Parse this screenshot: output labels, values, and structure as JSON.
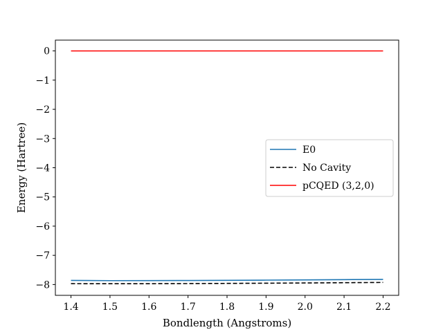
{
  "chart_data": {
    "type": "line",
    "title": "",
    "xlabel": "Bondlength (Angstroms)",
    "ylabel": "Energy (Hartree)",
    "xlim": [
      1.36,
      2.24
    ],
    "ylim": [
      -8.37,
      0.37
    ],
    "xticks": [
      1.4,
      1.5,
      1.6,
      1.7,
      1.8,
      1.9,
      2.0,
      2.1,
      2.2
    ],
    "xtick_labels": [
      "1.4",
      "1.5",
      "1.6",
      "1.7",
      "1.8",
      "1.9",
      "2.0",
      "2.1",
      "2.2"
    ],
    "yticks": [
      0,
      -1,
      -2,
      -3,
      -4,
      -5,
      -6,
      -7,
      -8
    ],
    "ytick_labels": [
      "0",
      "−1",
      "−2",
      "−3",
      "−4",
      "−5",
      "−6",
      "−7",
      "−8"
    ],
    "grid": false,
    "legend_position": "center-right",
    "x": [
      1.4,
      1.5,
      1.6,
      1.7,
      1.8,
      1.9,
      2.0,
      2.1,
      2.2
    ],
    "series": [
      {
        "name": "E0",
        "color": "#1f77b4",
        "style": "solid",
        "values": [
          -7.86,
          -7.867,
          -7.866,
          -7.862,
          -7.856,
          -7.849,
          -7.841,
          -7.832,
          -7.823
        ]
      },
      {
        "name": "No Cavity",
        "color": "#000000",
        "style": "dashed",
        "values": [
          -7.97,
          -7.972,
          -7.971,
          -7.967,
          -7.961,
          -7.954,
          -7.946,
          -7.937,
          -7.928
        ]
      },
      {
        "name": "pCQED (3,2,0)",
        "color": "#ff0000",
        "style": "solid",
        "values": [
          0,
          0,
          0,
          0,
          0,
          0,
          0,
          0,
          0
        ]
      }
    ]
  }
}
